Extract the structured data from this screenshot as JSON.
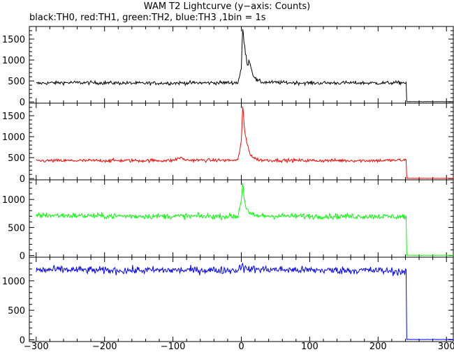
{
  "chart_data": {
    "type": "line",
    "title": "WAM T2 Lightcurve (y−axis: Counts)",
    "subtitle": "black:TH0, red:TH1, green:TH2, blue:TH3 ,1bin = 1s",
    "xlim": [
      -310,
      310
    ],
    "xticks": [
      -300,
      -200,
      -100,
      0,
      100,
      200,
      300
    ],
    "x_step": 1,
    "grid": false,
    "legend": "none (series described in subtitle)",
    "panels": [
      {
        "name": "TH0",
        "color": "#000000",
        "ylim": [
          -30,
          1800
        ],
        "yticks": [
          0,
          500,
          1000,
          1500
        ],
        "baseline": 450,
        "noise": 30,
        "data_end": 241,
        "after_end": 5,
        "key_points": [
          {
            "x": -300,
            "y": 440
          },
          {
            "x": -280,
            "y": 455
          },
          {
            "x": -250,
            "y": 460
          },
          {
            "x": -200,
            "y": 455
          },
          {
            "x": -150,
            "y": 445
          },
          {
            "x": -100,
            "y": 450
          },
          {
            "x": -50,
            "y": 455
          },
          {
            "x": -5,
            "y": 460
          },
          {
            "x": 0,
            "y": 800
          },
          {
            "x": 2,
            "y": 1750
          },
          {
            "x": 4,
            "y": 1450
          },
          {
            "x": 6,
            "y": 1150
          },
          {
            "x": 9,
            "y": 900
          },
          {
            "x": 12,
            "y": 1000
          },
          {
            "x": 16,
            "y": 700
          },
          {
            "x": 22,
            "y": 520
          },
          {
            "x": 30,
            "y": 470
          },
          {
            "x": 100,
            "y": 450
          },
          {
            "x": 150,
            "y": 455
          },
          {
            "x": 200,
            "y": 450
          },
          {
            "x": 241,
            "y": 460
          }
        ]
      },
      {
        "name": "TH1",
        "color": "#ff0000",
        "ylim": [
          -30,
          1800
        ],
        "yticks": [
          0,
          500,
          1000,
          1500
        ],
        "baseline": 430,
        "noise": 28,
        "data_end": 241,
        "after_end": 5,
        "key_points": [
          {
            "x": -300,
            "y": 425
          },
          {
            "x": -200,
            "y": 430
          },
          {
            "x": -100,
            "y": 430
          },
          {
            "x": -90,
            "y": 500
          },
          {
            "x": -80,
            "y": 440
          },
          {
            "x": -5,
            "y": 435
          },
          {
            "x": 0,
            "y": 900
          },
          {
            "x": 2,
            "y": 1700
          },
          {
            "x": 4,
            "y": 1300
          },
          {
            "x": 6,
            "y": 1000
          },
          {
            "x": 10,
            "y": 750
          },
          {
            "x": 14,
            "y": 550
          },
          {
            "x": 22,
            "y": 460
          },
          {
            "x": 30,
            "y": 440
          },
          {
            "x": 100,
            "y": 430
          },
          {
            "x": 200,
            "y": 430
          },
          {
            "x": 241,
            "y": 440
          }
        ]
      },
      {
        "name": "TH2",
        "color": "#00ff00",
        "ylim": [
          -30,
          1350
        ],
        "yticks": [
          0,
          500,
          1000
        ],
        "baseline": 700,
        "noise": 35,
        "data_end": 241,
        "after_end": 5,
        "key_points": [
          {
            "x": -300,
            "y": 720
          },
          {
            "x": -200,
            "y": 705
          },
          {
            "x": -100,
            "y": 700
          },
          {
            "x": -5,
            "y": 700
          },
          {
            "x": 0,
            "y": 1000
          },
          {
            "x": 2,
            "y": 1300
          },
          {
            "x": 4,
            "y": 1050
          },
          {
            "x": 7,
            "y": 850
          },
          {
            "x": 12,
            "y": 740
          },
          {
            "x": 20,
            "y": 710
          },
          {
            "x": 100,
            "y": 700
          },
          {
            "x": 200,
            "y": 700
          },
          {
            "x": 241,
            "y": 690
          }
        ]
      },
      {
        "name": "TH3",
        "color": "#0000ff",
        "ylim": [
          -30,
          1400
        ],
        "yticks": [
          0,
          500,
          1000
        ],
        "baseline": 1180,
        "noise": 45,
        "data_end": 241,
        "after_end": 5,
        "key_points": [
          {
            "x": -300,
            "y": 1180
          },
          {
            "x": -260,
            "y": 1190
          },
          {
            "x": -200,
            "y": 1175
          },
          {
            "x": -100,
            "y": 1180
          },
          {
            "x": -5,
            "y": 1180
          },
          {
            "x": 0,
            "y": 1250
          },
          {
            "x": 2,
            "y": 1320
          },
          {
            "x": 4,
            "y": 1200
          },
          {
            "x": 100,
            "y": 1180
          },
          {
            "x": 200,
            "y": 1175
          },
          {
            "x": 241,
            "y": 1150
          }
        ]
      }
    ]
  }
}
